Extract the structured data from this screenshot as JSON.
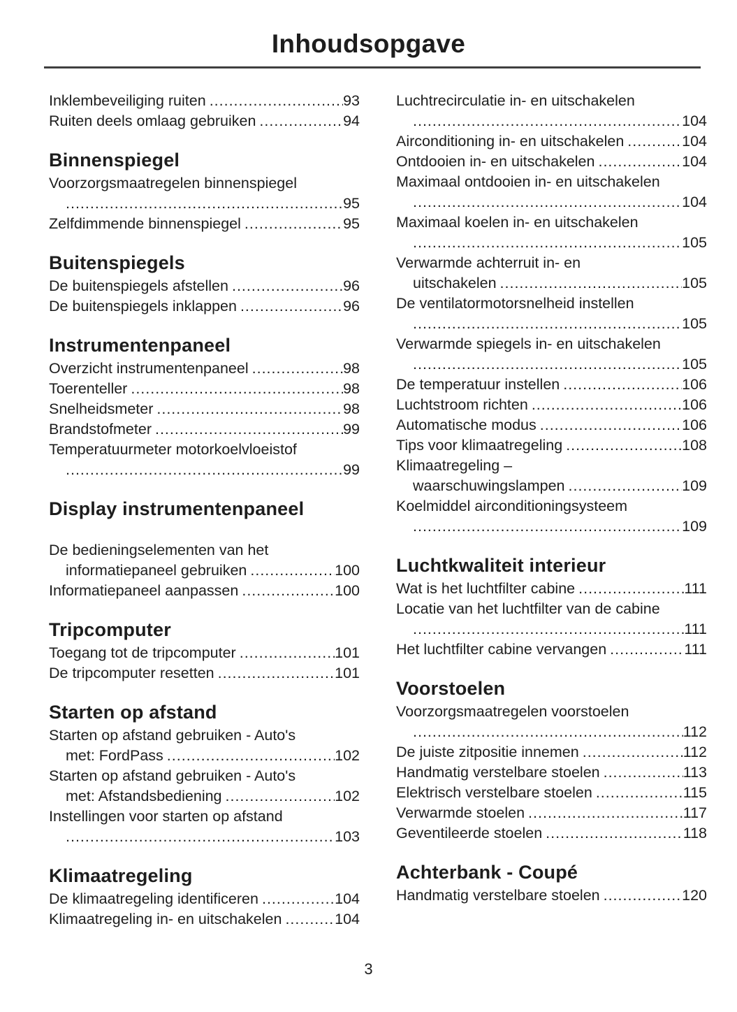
{
  "page": {
    "title": "Inhoudsopgave",
    "footer_page_number": "3"
  },
  "colors": {
    "text": "#1d1d1d",
    "rule": "#3f3f3f",
    "background": "#ffffff"
  },
  "columns": [
    {
      "blocks": [
        {
          "heading": null,
          "entries": [
            {
              "line1": "Inklembeveiliging ruiten",
              "page": "93"
            },
            {
              "line1": "Ruiten deels omlaag gebruiken",
              "page": "94"
            }
          ]
        },
        {
          "heading": "Binnenspiegel",
          "entries": [
            {
              "line1": "Voorzorgsmaatregelen binnenspiegel",
              "line2": "",
              "page": "95"
            },
            {
              "line1": "Zelfdimmende binnenspiegel",
              "page": "95"
            }
          ]
        },
        {
          "heading": "Buitenspiegels",
          "entries": [
            {
              "line1": "De buitenspiegels afstellen",
              "page": "96"
            },
            {
              "line1": "De buitenspiegels inklappen",
              "page": "96"
            }
          ]
        },
        {
          "heading": "Instrumentenpaneel",
          "entries": [
            {
              "line1": "Overzicht instrumentenpaneel",
              "page": "98"
            },
            {
              "line1": "Toerenteller",
              "page": "98"
            },
            {
              "line1": "Snelheidsmeter",
              "page": "98"
            },
            {
              "line1": "Brandstofmeter",
              "page": "99"
            },
            {
              "line1": "Temperatuurmeter motorkoelvloeistof",
              "line2": "",
              "page": "99"
            }
          ]
        },
        {
          "heading": "Display instrumentenpaneel",
          "gap_after_heading": true,
          "entries": [
            {
              "line1": "De bedieningselementen van het",
              "line2": "informatiepaneel gebruiken",
              "page": "100"
            },
            {
              "line1": "Informatiepaneel aanpassen",
              "page": "100"
            }
          ]
        },
        {
          "heading": "Tripcomputer",
          "entries": [
            {
              "line1": "Toegang tot de tripcomputer",
              "page": "101"
            },
            {
              "line1": "De tripcomputer resetten",
              "page": "101"
            }
          ]
        },
        {
          "heading": "Starten op afstand",
          "entries": [
            {
              "line1": "Starten op afstand gebruiken - Auto's",
              "line2": "met: FordPass",
              "page": "102"
            },
            {
              "line1": "Starten op afstand gebruiken - Auto's",
              "line2": "met: Afstandsbediening",
              "page": "102"
            },
            {
              "line1": "Instellingen voor starten op afstand",
              "line2": "",
              "page": "103"
            }
          ]
        },
        {
          "heading": "Klimaatregeling",
          "entries": [
            {
              "line1": "De klimaatregeling identificeren",
              "page": "104"
            },
            {
              "line1": "Klimaatregeling in- en uitschakelen",
              "page": "104"
            }
          ]
        }
      ]
    },
    {
      "blocks": [
        {
          "heading": null,
          "entries": [
            {
              "line1": "Luchtrecirculatie in- en uitschakelen",
              "line2": "",
              "page": "104"
            },
            {
              "line1": "Airconditioning in- en uitschakelen",
              "page": "104"
            },
            {
              "line1": "Ontdooien in- en uitschakelen",
              "page": "104"
            },
            {
              "line1": "Maximaal ontdooien in- en uitschakelen",
              "line2": "",
              "page": "104"
            },
            {
              "line1": "Maximaal koelen in- en uitschakelen",
              "line2": "",
              "page": "105"
            },
            {
              "line1": "Verwarmde achterruit in- en",
              "line2": "uitschakelen",
              "page": "105"
            },
            {
              "line1": "De ventilatormotorsnelheid instellen",
              "line2": "",
              "page": "105"
            },
            {
              "line1": "Verwarmde spiegels in- en uitschakelen",
              "line2": "",
              "page": "105"
            },
            {
              "line1": "De temperatuur instellen",
              "page": "106"
            },
            {
              "line1": "Luchtstroom richten",
              "page": "106"
            },
            {
              "line1": "Automatische modus",
              "page": "106"
            },
            {
              "line1": "Tips voor klimaatregeling",
              "page": "108"
            },
            {
              "line1": "Klimaatregeling –",
              "line2": "waarschuwingslampen",
              "page": "109"
            },
            {
              "line1": "Koelmiddel airconditioningsysteem",
              "line2": "",
              "page": "109"
            }
          ]
        },
        {
          "heading": "Luchtkwaliteit interieur",
          "entries": [
            {
              "line1": "Wat is het luchtfilter cabine",
              "page": "111"
            },
            {
              "line1": "Locatie van het luchtfilter van de cabine",
              "line2": "",
              "page": "111"
            },
            {
              "line1": "Het luchtfilter cabine vervangen",
              "page": "111"
            }
          ]
        },
        {
          "heading": "Voorstoelen",
          "entries": [
            {
              "line1": "Voorzorgsmaatregelen voorstoelen",
              "line2": "",
              "page": "112"
            },
            {
              "line1": "De juiste zitpositie innemen",
              "page": "112"
            },
            {
              "line1": "Handmatig verstelbare stoelen",
              "page": "113"
            },
            {
              "line1": "Elektrisch verstelbare stoelen",
              "page": "115"
            },
            {
              "line1": "Verwarmde stoelen",
              "page": "117"
            },
            {
              "line1": "Geventileerde stoelen",
              "page": "118"
            }
          ]
        },
        {
          "heading": "Achterbank - Coupé",
          "entries": [
            {
              "line1": "Handmatig verstelbare stoelen",
              "page": "120"
            }
          ]
        }
      ]
    }
  ]
}
